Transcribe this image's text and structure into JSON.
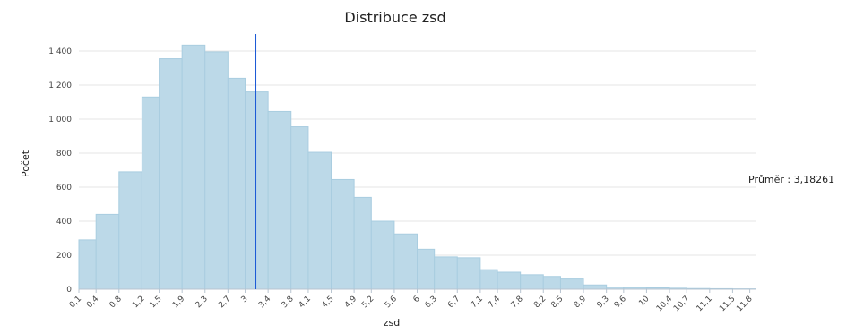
{
  "chart_data": {
    "type": "bar",
    "title": "Distribuce zsd",
    "xlabel": "zsd",
    "ylabel": "Počet",
    "ylim": [
      0,
      1500
    ],
    "y_ticks": [
      0,
      200,
      400,
      600,
      800,
      1000,
      1200,
      1400
    ],
    "y_tick_labels": [
      "0",
      "200",
      "400",
      "600",
      "800",
      "1 000",
      "1 200",
      "1 400"
    ],
    "x_range": [
      0.1,
      11.9
    ],
    "x_ticks": [
      0.1,
      0.4,
      0.8,
      1.2,
      1.5,
      1.9,
      2.3,
      2.7,
      3,
      3.4,
      3.8,
      4.1,
      4.5,
      4.9,
      5.2,
      5.6,
      6,
      6.3,
      6.7,
      7.1,
      7.4,
      7.8,
      8.2,
      8.5,
      8.9,
      9.3,
      9.6,
      10,
      10.4,
      10.7,
      11.1,
      11.5,
      11.8
    ],
    "x_tick_labels": [
      "0,1",
      "0,4",
      "0,8",
      "1,2",
      "1,5",
      "1,9",
      "2,3",
      "2,7",
      "3",
      "3,4",
      "3,8",
      "4,1",
      "4,5",
      "4,9",
      "5,2",
      "5,6",
      "6",
      "6,3",
      "6,7",
      "7,1",
      "7,4",
      "7,8",
      "8,2",
      "8,5",
      "8,9",
      "9,3",
      "9,6",
      "10",
      "10,4",
      "10,7",
      "11,1",
      "11,5",
      "11,8"
    ],
    "bins": [
      {
        "from": 0.1,
        "to": 0.4,
        "value": 290
      },
      {
        "from": 0.4,
        "to": 0.8,
        "value": 440
      },
      {
        "from": 0.8,
        "to": 1.2,
        "value": 690
      },
      {
        "from": 1.2,
        "to": 1.5,
        "value": 1130
      },
      {
        "from": 1.5,
        "to": 1.9,
        "value": 1355
      },
      {
        "from": 1.9,
        "to": 2.3,
        "value": 1435
      },
      {
        "from": 2.3,
        "to": 2.7,
        "value": 1395
      },
      {
        "from": 2.7,
        "to": 3.0,
        "value": 1240
      },
      {
        "from": 3.0,
        "to": 3.4,
        "value": 1160
      },
      {
        "from": 3.4,
        "to": 3.8,
        "value": 1045
      },
      {
        "from": 3.8,
        "to": 4.1,
        "value": 955
      },
      {
        "from": 4.1,
        "to": 4.5,
        "value": 805
      },
      {
        "from": 4.5,
        "to": 4.9,
        "value": 645
      },
      {
        "from": 4.9,
        "to": 5.2,
        "value": 540
      },
      {
        "from": 5.2,
        "to": 5.6,
        "value": 400
      },
      {
        "from": 5.6,
        "to": 6.0,
        "value": 325
      },
      {
        "from": 6.0,
        "to": 6.3,
        "value": 235
      },
      {
        "from": 6.3,
        "to": 6.7,
        "value": 190
      },
      {
        "from": 6.7,
        "to": 7.1,
        "value": 185
      },
      {
        "from": 7.1,
        "to": 7.4,
        "value": 115
      },
      {
        "from": 7.4,
        "to": 7.8,
        "value": 100
      },
      {
        "from": 7.8,
        "to": 8.2,
        "value": 85
      },
      {
        "from": 8.2,
        "to": 8.5,
        "value": 75
      },
      {
        "from": 8.5,
        "to": 8.9,
        "value": 60
      },
      {
        "from": 8.9,
        "to": 9.3,
        "value": 25
      },
      {
        "from": 9.3,
        "to": 9.6,
        "value": 12
      },
      {
        "from": 9.6,
        "to": 10.0,
        "value": 10
      },
      {
        "from": 10.0,
        "to": 10.4,
        "value": 8
      },
      {
        "from": 10.4,
        "to": 10.7,
        "value": 6
      },
      {
        "from": 10.7,
        "to": 11.1,
        "value": 4
      },
      {
        "from": 11.1,
        "to": 11.5,
        "value": 3
      },
      {
        "from": 11.5,
        "to": 11.9,
        "value": 2
      }
    ],
    "mean": {
      "value": 3.18261,
      "label": "Průměr : 3,18261"
    },
    "grid": true,
    "legend": "none",
    "colors": {
      "bar_fill": "#bcd9e8",
      "bar_stroke": "#a9cde0",
      "mean_line": "#1d5bd6",
      "grid": "#e6e6e6"
    }
  }
}
